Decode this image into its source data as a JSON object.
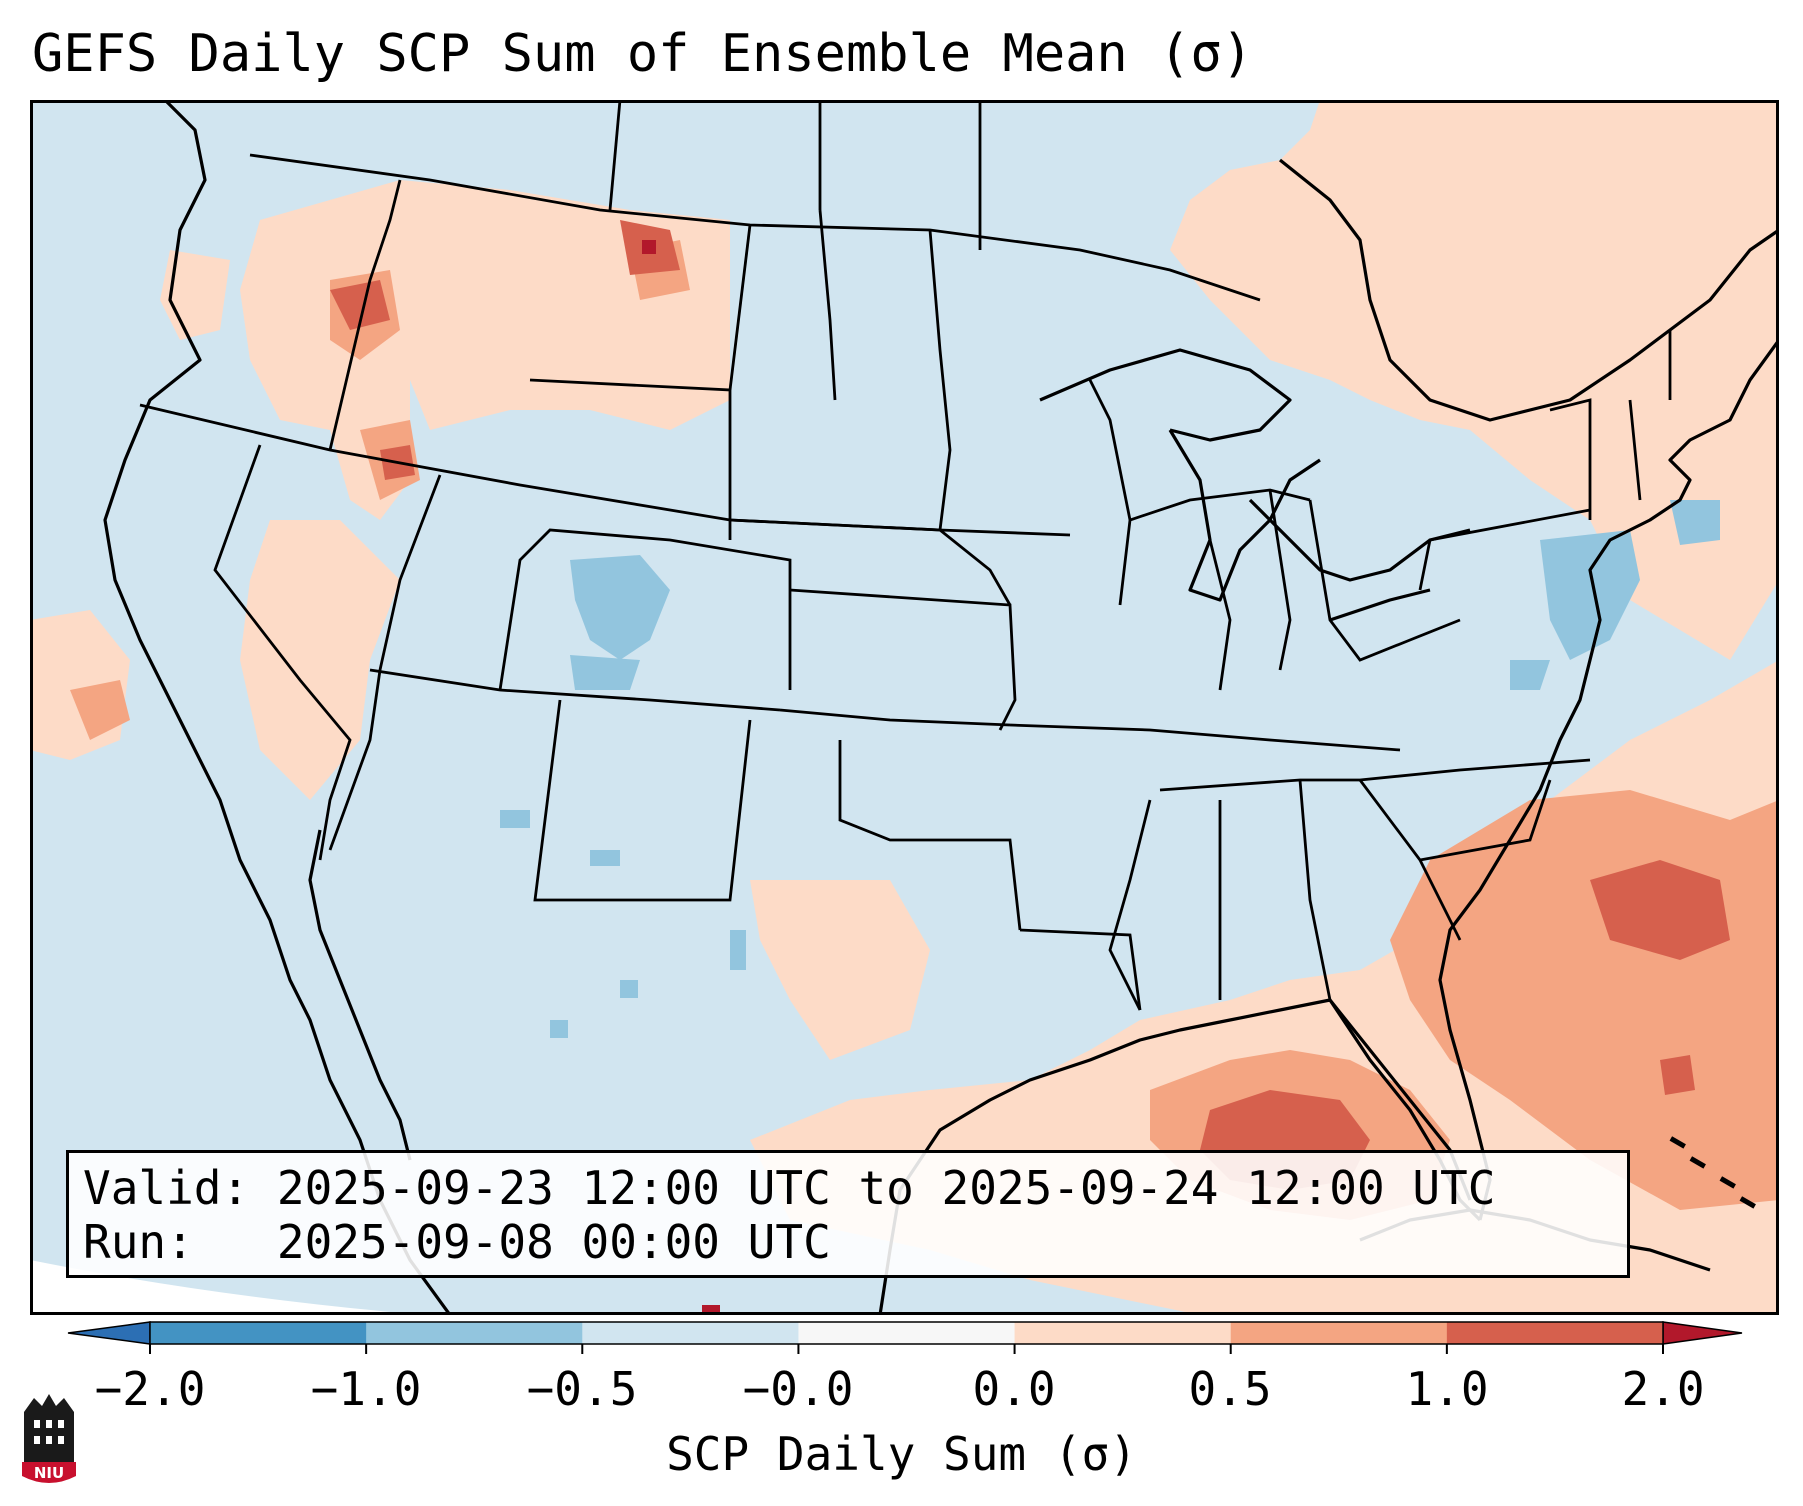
{
  "title": "GEFS Daily SCP Sum of Ensemble Mean (σ)",
  "info": {
    "valid_label": "Valid:",
    "valid_value": "2025-09-23 12:00 UTC to 2025-09-24 12:00 UTC",
    "run_label": "Run:",
    "run_value": "2025-09-08 00:00 UTC"
  },
  "colorbar": {
    "label": "SCP Daily Sum (σ)",
    "ticks": [
      "−2.0",
      "−1.0",
      "−0.5",
      "−0.0",
      "0.0",
      "0.5",
      "1.0",
      "2.0"
    ],
    "bins": [
      {
        "range": "< -2.0",
        "color": "#2c6fb4"
      },
      {
        "range": "-2.0 to -1.0",
        "color": "#4393c3"
      },
      {
        "range": "-1.0 to -0.5",
        "color": "#92c5de"
      },
      {
        "range": "-0.5 to -0.0",
        "color": "#d1e5f0"
      },
      {
        "range": "-0.0 to 0.0",
        "color": "#f7f7f7"
      },
      {
        "range": "0.0 to 0.5",
        "color": "#fddbc7"
      },
      {
        "range": "0.5 to 1.0",
        "color": "#f4a582"
      },
      {
        "range": "1.0 to 2.0",
        "color": "#d6604d"
      },
      {
        "range": "> 2.0",
        "color": "#b2182b"
      }
    ]
  },
  "logo": {
    "text": "NIU"
  },
  "colors": {
    "background_field": "#d1e5f0",
    "frame": "#000000"
  }
}
